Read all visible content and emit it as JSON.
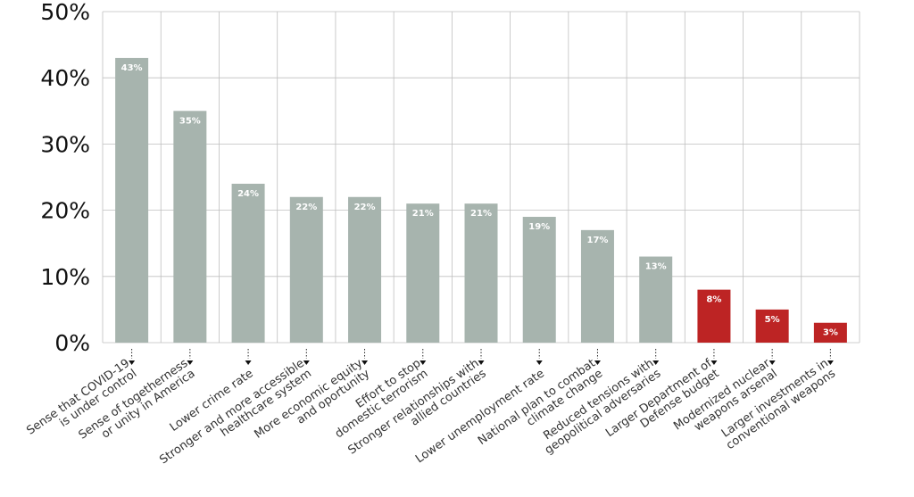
{
  "chart_data": {
    "type": "bar",
    "title": "",
    "xlabel": "",
    "ylabel": "",
    "ylim": [
      0,
      50
    ],
    "yticks": [
      "0%",
      "10%",
      "20%",
      "30%",
      "40%",
      "50%"
    ],
    "grid": true,
    "categories": [
      [
        "Sense that COVID-19",
        "is under control"
      ],
      [
        "Sense of togetherness",
        "or unity in America"
      ],
      [
        "Lower crime rate"
      ],
      [
        "Stronger and more accessible",
        "healthcare system"
      ],
      [
        "More economic equity",
        "and oportunity"
      ],
      [
        "Effort to stop",
        "domestic terrorism"
      ],
      [
        "Stronger relationships with",
        "allied countries"
      ],
      [
        "Lower unemployment rate"
      ],
      [
        "National plan to combat",
        "climate change"
      ],
      [
        "Reduced tensions with",
        "geopolitical adversaries"
      ],
      [
        "Larger Department of",
        "Defense budget"
      ],
      [
        "Modernized nuclear",
        "weapons arsenal"
      ],
      [
        "Larger investments in",
        "conventional weapons"
      ]
    ],
    "values": [
      43,
      35,
      24,
      22,
      22,
      21,
      21,
      19,
      17,
      13,
      8,
      5,
      3
    ],
    "value_labels": [
      "43%",
      "35%",
      "24%",
      "22%",
      "22%",
      "21%",
      "21%",
      "19%",
      "17%",
      "13%",
      "8%",
      "5%",
      "3%"
    ],
    "highlight": [
      false,
      false,
      false,
      false,
      false,
      false,
      false,
      false,
      false,
      false,
      true,
      true,
      true
    ],
    "colors": {
      "default": "#a7b4ae",
      "highlight": "#bd2424",
      "grid": "#bfbfbf",
      "tick": "#111111"
    }
  }
}
